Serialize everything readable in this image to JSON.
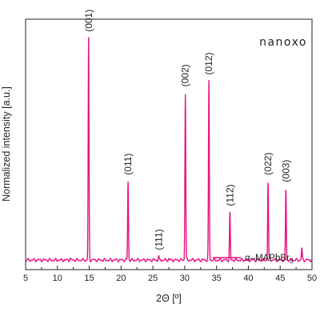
{
  "brand": "nanoxo",
  "chart_data": {
    "type": "line",
    "xlabel": "2Θ [º]",
    "ylabel": "Normalized intensity [a.u.]",
    "xlim": [
      5,
      50
    ],
    "ylim": [
      0,
      1.05
    ],
    "x_ticks": [
      5,
      10,
      15,
      20,
      25,
      30,
      35,
      40,
      45,
      50
    ],
    "y_ticks": [],
    "grid": false,
    "legend": {
      "placement": "bottom-right",
      "label_main": "α–MAPbBr",
      "label_sub": "3"
    },
    "series": [
      {
        "color": "#e8127f",
        "baseline": 0.04,
        "peaks": [
          {
            "x": 12.0,
            "y": 0.048
          },
          {
            "x": 14.9,
            "y": 0.97
          },
          {
            "x": 21.1,
            "y": 0.37
          },
          {
            "x": 25.9,
            "y": 0.055
          },
          {
            "x": 27.5,
            "y": 0.045
          },
          {
            "x": 30.1,
            "y": 0.74
          },
          {
            "x": 33.8,
            "y": 0.79
          },
          {
            "x": 37.1,
            "y": 0.24
          },
          {
            "x": 43.1,
            "y": 0.37
          },
          {
            "x": 45.9,
            "y": 0.34
          },
          {
            "x": 48.4,
            "y": 0.09
          }
        ]
      }
    ],
    "annotations": [
      {
        "text": "(001)",
        "x": 14.9
      },
      {
        "text": "(011)",
        "x": 21.1
      },
      {
        "text": "(111)",
        "x": 25.9
      },
      {
        "text": "(002)",
        "x": 30.1
      },
      {
        "text": "(012)",
        "x": 33.8
      },
      {
        "text": "(112)",
        "x": 37.1
      },
      {
        "text": "(022)",
        "x": 43.1
      },
      {
        "text": "(003)",
        "x": 45.9
      }
    ]
  }
}
